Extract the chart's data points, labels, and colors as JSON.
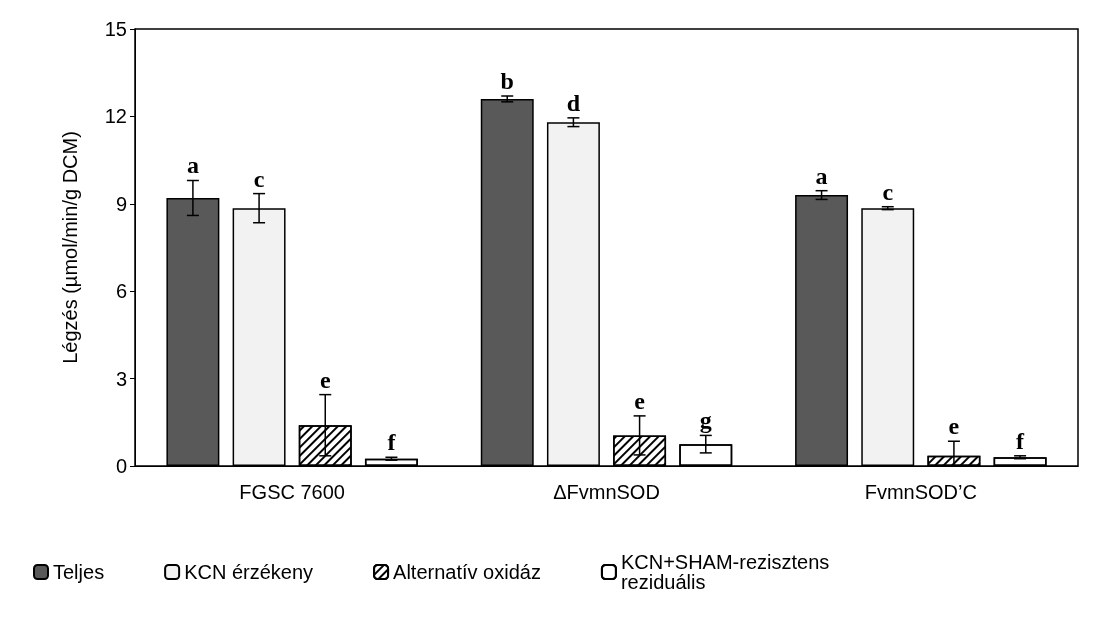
{
  "chart_data": {
    "type": "bar",
    "ylabel": "Légzés (µmol/min/g DCM)",
    "categories": [
      "FGSC 7600",
      "ΔFvmnSOD",
      "FvmnSOD’C"
    ],
    "series": [
      {
        "name": "Teljes",
        "color": "#595959",
        "values": [
          9.2,
          12.6,
          9.3
        ],
        "errors": [
          0.6,
          0.1,
          0.15
        ],
        "value_labels": [
          "a",
          "b",
          "a"
        ]
      },
      {
        "name": "KCN érzékeny",
        "color": "#f2f2f2",
        "values": [
          8.85,
          11.8,
          8.85
        ],
        "errors": [
          0.5,
          0.15,
          0.05
        ],
        "value_labels": [
          "c",
          "d",
          "c"
        ]
      },
      {
        "name": "Alternatív oxidáz",
        "color": "#ffffff",
        "values": [
          1.4,
          1.05,
          0.35
        ],
        "errors": [
          1.05,
          0.67,
          [
            0,
            0.85
          ]
        ],
        "value_labels": [
          "e",
          "e",
          "e"
        ]
      },
      {
        "name": "KCN+SHAM-rezisztens reziduális",
        "color": "#ffffff",
        "values": [
          0.25,
          0.75,
          0.3
        ],
        "errors": [
          0.05,
          0.3,
          0.05
        ],
        "value_labels": [
          "f",
          "g",
          "f"
        ]
      }
    ],
    "ylim": [
      0,
      15
    ],
    "yticks": [
      0,
      3,
      6,
      9,
      12,
      15
    ],
    "grid": false,
    "legend": "bottom"
  }
}
